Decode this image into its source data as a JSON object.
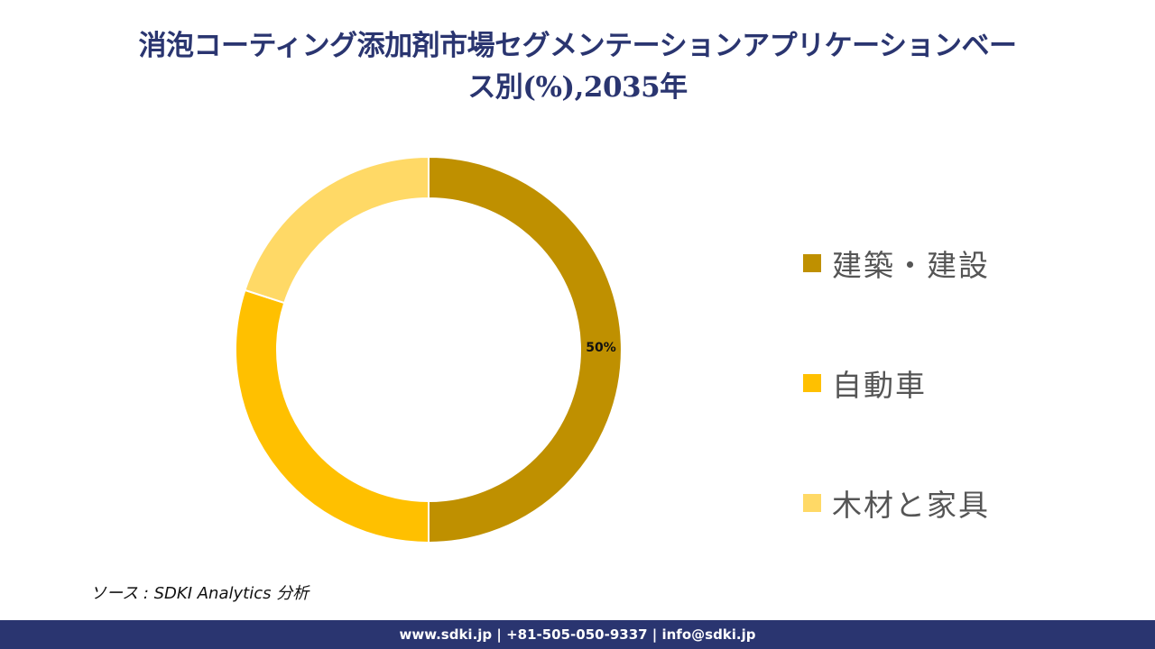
{
  "title": {
    "line1": "消泡コーティング添加剤市場セグメンテーションアプリケーションベー",
    "line2": "ス別(%),2035年"
  },
  "chart_data": {
    "type": "pie",
    "subtype": "donut",
    "title": "消泡コーティング添加剤市場セグメンテーションアプリケーションベース別(%),2035年",
    "categories": [
      "建築・建設",
      "自動車",
      "木材と家具"
    ],
    "values": [
      50,
      30,
      20
    ],
    "colors": [
      "#bf9000",
      "#ffc000",
      "#ffd966"
    ],
    "data_labels": [
      "50%",
      "",
      ""
    ],
    "legend_position": "right",
    "start_angle": 0,
    "direction": "clockwise"
  },
  "data_label": "50%",
  "legend": {
    "items": [
      {
        "label": "建築・建設",
        "color": "#bf9000"
      },
      {
        "label": "自動車",
        "color": "#ffc000"
      },
      {
        "label": "木材と家具",
        "color": "#ffd966"
      }
    ]
  },
  "source": "ソース : SDKI Analytics 分析",
  "footer": "www.sdki.jp | +81-505-050-9337 | info@sdki.jp"
}
